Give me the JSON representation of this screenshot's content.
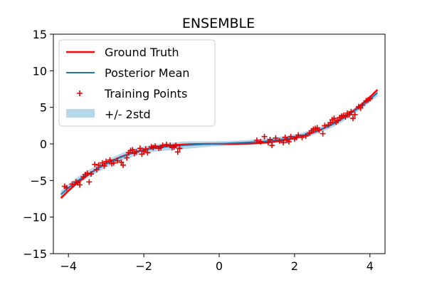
{
  "chart_data": {
    "type": "line",
    "title": "ENSEMBLE",
    "xlabel": "",
    "ylabel": "",
    "xlim": [
      -4.4,
      4.4
    ],
    "ylim": [
      -15,
      15
    ],
    "xticks": [
      -4,
      -2,
      0,
      2,
      4
    ],
    "yticks": [
      -15,
      -10,
      -5,
      0,
      5,
      10,
      15
    ],
    "xtick_labels": [
      "−4",
      "−2",
      "0",
      "2",
      "4"
    ],
    "ytick_labels": [
      "−15",
      "−10",
      "−5",
      "0",
      "5",
      "10",
      "15"
    ],
    "legend_position": "top-left",
    "grid": false,
    "colors": {
      "ground_truth": "#ff0000",
      "posterior_mean": "#1f77b4",
      "training_points": "#e00000",
      "band": "#9ec9e2"
    },
    "series": [
      {
        "name": "Ground Truth",
        "style": "line",
        "x": [
          -4.2,
          -4.0,
          -3.8,
          -3.6,
          -3.4,
          -3.2,
          -3.0,
          -2.8,
          -2.6,
          -2.4,
          -2.2,
          -2.0,
          -1.8,
          -1.6,
          -1.4,
          -1.2,
          -1.0,
          -0.8,
          -0.6,
          -0.4,
          -0.2,
          0.0,
          0.2,
          0.4,
          0.6,
          0.8,
          1.0,
          1.2,
          1.4,
          1.6,
          1.8,
          2.0,
          2.2,
          2.4,
          2.6,
          2.8,
          3.0,
          3.2,
          3.4,
          3.6,
          3.8,
          4.0,
          4.2
        ],
        "y": [
          -7.41,
          -6.4,
          -5.49,
          -4.67,
          -3.93,
          -3.28,
          -2.7,
          -2.2,
          -1.76,
          -1.38,
          -1.06,
          -0.8,
          -0.58,
          -0.41,
          -0.27,
          -0.17,
          -0.1,
          -0.05,
          -0.02,
          -0.01,
          0.0,
          0.0,
          0.0,
          0.01,
          0.02,
          0.05,
          0.1,
          0.17,
          0.27,
          0.41,
          0.58,
          0.8,
          1.06,
          1.38,
          1.76,
          2.2,
          2.7,
          3.28,
          3.93,
          4.67,
          5.49,
          6.4,
          7.41
        ]
      },
      {
        "name": "Posterior Mean",
        "style": "line",
        "x": [
          -4.2,
          -4.0,
          -3.8,
          -3.6,
          -3.4,
          -3.2,
          -3.0,
          -2.8,
          -2.6,
          -2.4,
          -2.2,
          -2.0,
          -1.8,
          -1.6,
          -1.4,
          -1.2,
          -1.0,
          -0.8,
          -0.6,
          -0.4,
          -0.2,
          0.0,
          0.2,
          0.4,
          0.6,
          0.8,
          1.0,
          1.2,
          1.4,
          1.6,
          1.8,
          2.0,
          2.2,
          2.4,
          2.6,
          2.8,
          3.0,
          3.2,
          3.4,
          3.6,
          3.8,
          4.0,
          4.2
        ],
        "y": [
          -6.9,
          -6.0,
          -5.2,
          -4.5,
          -3.9,
          -3.3,
          -2.75,
          -2.25,
          -1.8,
          -1.4,
          -1.1,
          -0.85,
          -0.65,
          -0.5,
          -0.38,
          -0.3,
          -0.22,
          -0.15,
          -0.1,
          -0.05,
          0.0,
          0.03,
          0.07,
          0.12,
          0.17,
          0.22,
          0.28,
          0.35,
          0.45,
          0.58,
          0.72,
          0.9,
          1.15,
          1.45,
          1.8,
          2.2,
          2.65,
          3.2,
          3.85,
          4.55,
          5.3,
          6.1,
          7.0
        ]
      }
    ],
    "band": {
      "name": "+/- 2std",
      "x": [
        -4.2,
        -4.0,
        -3.8,
        -3.6,
        -3.4,
        -3.2,
        -3.0,
        -2.8,
        -2.6,
        -2.4,
        -2.2,
        -2.0,
        -1.8,
        -1.6,
        -1.4,
        -1.2,
        -1.0,
        -0.8,
        -0.6,
        -0.4,
        -0.2,
        0.0,
        0.2,
        0.4,
        0.6,
        0.8,
        1.0,
        1.2,
        1.4,
        1.6,
        1.8,
        2.0,
        2.2,
        2.4,
        2.6,
        2.8,
        3.0,
        3.2,
        3.4,
        3.6,
        3.8,
        4.0,
        4.2
      ],
      "lower": [
        -7.4,
        -6.5,
        -5.7,
        -5.0,
        -4.4,
        -3.8,
        -3.25,
        -2.75,
        -2.3,
        -1.9,
        -1.6,
        -1.35,
        -1.15,
        -1.0,
        -0.9,
        -0.85,
        -0.75,
        -0.65,
        -0.55,
        -0.45,
        -0.35,
        -0.3,
        -0.25,
        -0.2,
        -0.15,
        -0.1,
        -0.07,
        -0.03,
        0.05,
        0.18,
        0.32,
        0.5,
        0.75,
        1.05,
        1.4,
        1.8,
        2.25,
        2.8,
        3.45,
        4.15,
        4.9,
        5.7,
        6.5
      ],
      "upper": [
        -6.4,
        -5.5,
        -4.7,
        -4.0,
        -3.4,
        -2.8,
        -2.25,
        -1.75,
        -1.3,
        -0.9,
        -0.6,
        -0.35,
        -0.15,
        0.0,
        0.1,
        0.2,
        0.3,
        0.35,
        0.35,
        0.35,
        0.35,
        0.36,
        0.39,
        0.44,
        0.49,
        0.54,
        0.63,
        0.73,
        0.85,
        0.98,
        1.12,
        1.3,
        1.55,
        1.85,
        2.2,
        2.6,
        3.05,
        3.6,
        4.25,
        4.95,
        5.7,
        6.5,
        7.5
      ]
    },
    "training_points": {
      "name": "Training Points",
      "x": [
        -4.1,
        -4.05,
        -3.9,
        -3.8,
        -3.75,
        -3.7,
        -3.6,
        -3.55,
        -3.5,
        -3.45,
        -3.4,
        -3.3,
        -3.25,
        -3.2,
        -3.1,
        -3.05,
        -3.0,
        -2.9,
        -2.85,
        -2.8,
        -2.7,
        -2.6,
        -2.55,
        -2.45,
        -2.4,
        -2.35,
        -2.3,
        -2.25,
        -2.2,
        -2.1,
        -2.05,
        -2.0,
        -1.95,
        -1.9,
        -1.8,
        -1.75,
        -1.7,
        -1.6,
        -1.55,
        -1.5,
        -1.4,
        -1.3,
        -1.25,
        -1.2,
        -1.15,
        -1.1,
        -1.05,
        1.0,
        1.1,
        1.2,
        1.3,
        1.35,
        1.4,
        1.5,
        1.6,
        1.7,
        1.75,
        1.8,
        1.85,
        1.9,
        2.0,
        2.05,
        2.1,
        2.2,
        2.3,
        2.4,
        2.45,
        2.5,
        2.55,
        2.6,
        2.65,
        2.75,
        2.8,
        2.9,
        2.95,
        3.0,
        3.05,
        3.1,
        3.15,
        3.2,
        3.25,
        3.3,
        3.35,
        3.4,
        3.45,
        3.5,
        3.55,
        3.6,
        3.7,
        3.75,
        3.8,
        3.9,
        3.95,
        4.0
      ],
      "y": [
        -5.8,
        -6.0,
        -5.5,
        -5.2,
        -5.3,
        -5.6,
        -4.5,
        -4.2,
        -4.0,
        -5.2,
        -4.1,
        -2.8,
        -3.5,
        -2.9,
        -2.6,
        -3.0,
        -2.4,
        -2.2,
        -2.7,
        -2.6,
        -2.3,
        -2.5,
        -2.9,
        -1.9,
        -1.2,
        -0.9,
        -0.8,
        -1.3,
        -1.1,
        -0.6,
        -1.4,
        -1.0,
        -0.7,
        -1.2,
        -0.4,
        -0.5,
        -0.3,
        -0.6,
        -0.5,
        -0.2,
        -0.1,
        -0.2,
        -0.5,
        -0.4,
        -0.2,
        -1.1,
        -0.6,
        0.5,
        0.3,
        1.0,
        0.2,
        0.6,
        -0.2,
        0.8,
        0.4,
        0.2,
        0.9,
        0.5,
        0.3,
        1.0,
        0.7,
        0.9,
        1.2,
        0.9,
        1.1,
        1.5,
        1.8,
        2.0,
        2.1,
        2.2,
        1.9,
        1.4,
        2.5,
        2.6,
        2.9,
        3.3,
        3.5,
        3.0,
        3.2,
        3.6,
        3.8,
        3.9,
        3.7,
        4.2,
        4.0,
        4.4,
        3.5,
        4.0,
        5.1,
        4.9,
        5.3,
        5.9,
        6.0,
        6.2
      ]
    }
  }
}
